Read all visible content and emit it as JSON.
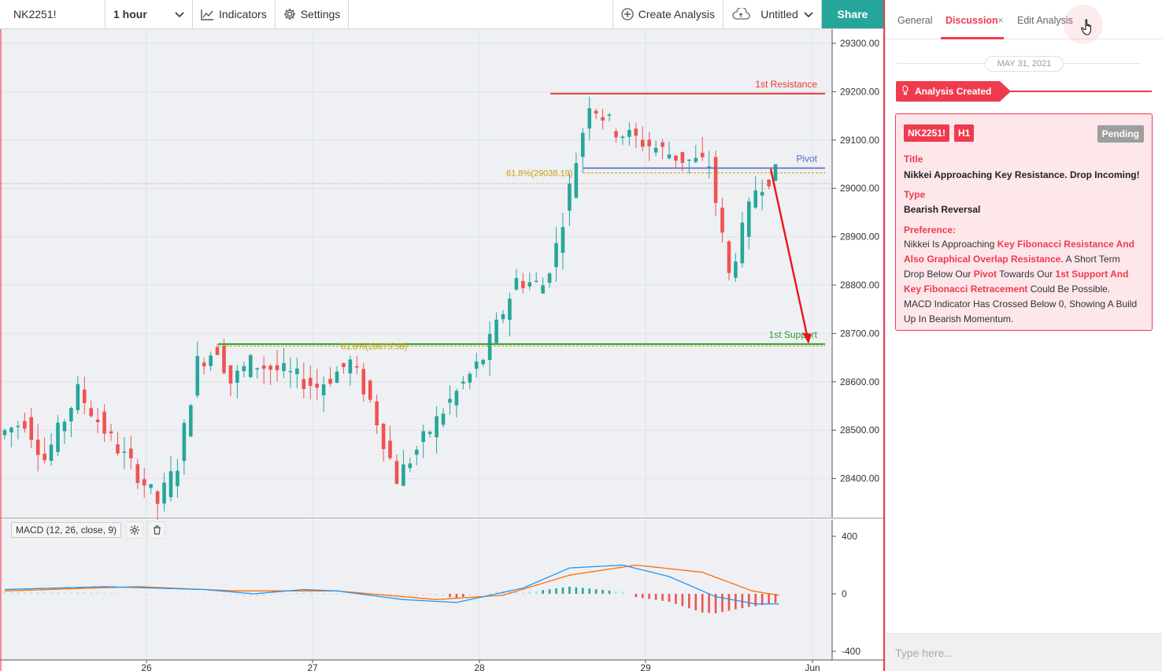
{
  "toolbar": {
    "symbol": "NK2251!",
    "interval": "1 hour",
    "indicators_label": "Indicators",
    "settings_label": "Settings",
    "create_analysis_label": "Create Analysis",
    "untitled_label": "Untitled",
    "share_label": "Share"
  },
  "chart": {
    "y_ticks": [
      "29300.00",
      "29200.00",
      "29100.00",
      "29000.00",
      "28900.00",
      "28800.00",
      "28700.00",
      "28600.00",
      "28500.00",
      "28400.00"
    ],
    "x_ticks": [
      "26",
      "27",
      "28",
      "29",
      "Jun"
    ],
    "annotations": {
      "resistance_label": "1st Resistance",
      "pivot_label": "Pivot",
      "support_label": "1st Support",
      "fib_upper": "61.8%(29038.19)",
      "fib_lower": "61.8%(28675.58)"
    },
    "colors": {
      "up": "#26a69a",
      "down": "#ef5350",
      "resistance": "#e53935",
      "pivot": "#5c6bc0",
      "support": "#2e9e2e",
      "fib": "#c8a000",
      "arrow": "#e8141c"
    }
  },
  "macd": {
    "label": "MACD (12, 26, close, 9)",
    "y_ticks": [
      "400",
      "0",
      "-400"
    ],
    "settings_icon": "gear-icon",
    "delete_icon": "trash-icon",
    "colors": {
      "macd_line": "#2196f3",
      "signal_line": "#ff6d00"
    }
  },
  "side_panel": {
    "tabs": {
      "general": "General",
      "discussion": "Discussion",
      "close": "×",
      "edit": "Edit Analysis"
    },
    "date": "MAY 31, 2021",
    "created_label": "Analysis Created",
    "card": {
      "symbol": "NK2251!",
      "timeframe": "H1",
      "status": "Pending",
      "title_label": "Title",
      "title": "Nikkei Approaching Key Resistance. Drop Incoming!",
      "type_label": "Type",
      "type": "Bearish Reversal",
      "preference_label": "Preference:",
      "preference_parts": {
        "p1": "Nikkei Is Approaching ",
        "h1": "Key Fibonacci Resistance And Also Graphical Overlap Resistance.",
        "p2": " A Short Term Drop Below Our ",
        "h2": "Pivot",
        "p3": " Towards Our ",
        "h3": "1st Support And Key Fibonacci Retracement",
        "p4": " Could Be Possible. MACD Indicator Has Crossed Below 0, Showing A Build Up In Bearish Momentum."
      }
    },
    "chat_placeholder": "Type here..."
  }
}
